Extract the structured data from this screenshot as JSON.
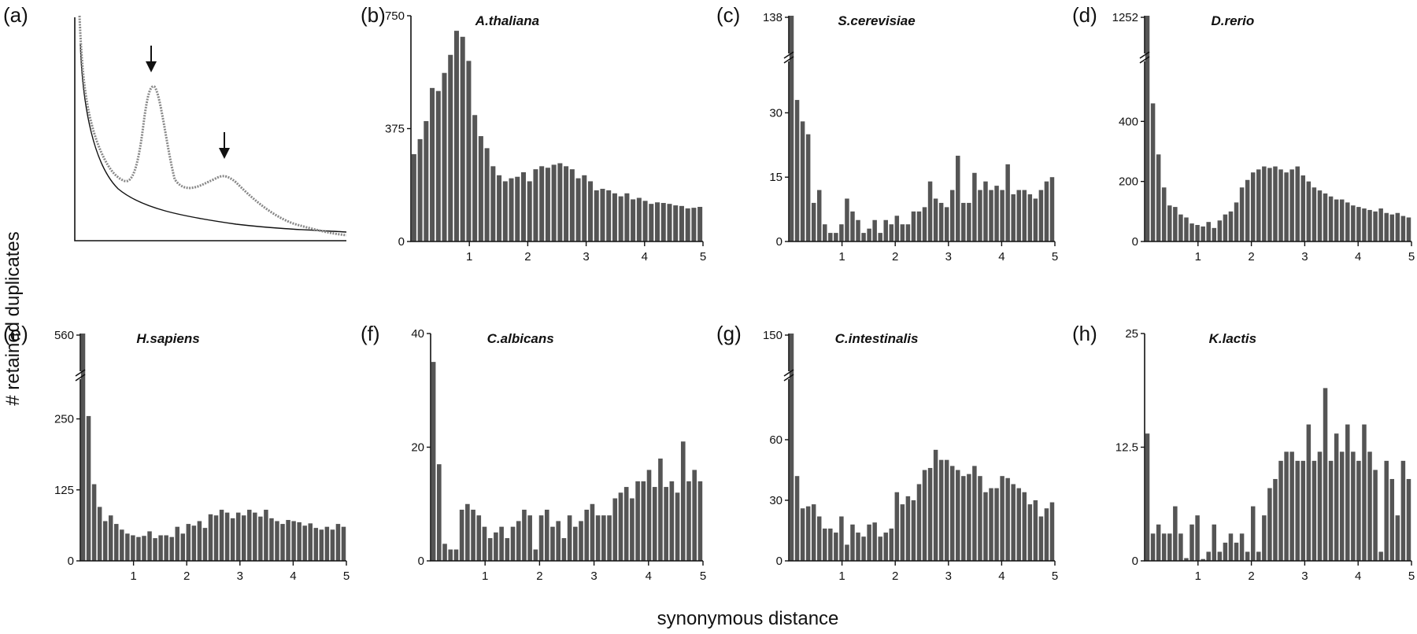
{
  "figure": {
    "xlabel": "synonymous distance",
    "ylabel": "# retained duplicates",
    "bar_color": "#555555"
  },
  "schematic": {
    "letter": "(a)",
    "description_series": [
      "background decay curve (solid)",
      "observed distribution with two peaks (dotted)"
    ],
    "arrows": 2
  },
  "chart_data": [
    {
      "panel": "b",
      "letter": "(b)",
      "type": "bar",
      "title": "A.thaliana",
      "xlabel": "synonymous distance",
      "ylabel": "# retained duplicates",
      "xlim": [
        0,
        5
      ],
      "ylim": [
        0,
        750
      ],
      "yticks": [
        0,
        375,
        750
      ],
      "xticks": [
        1,
        2,
        3,
        4,
        5
      ],
      "broken_axis": false,
      "values": [
        290,
        340,
        400,
        510,
        500,
        560,
        620,
        700,
        680,
        600,
        420,
        350,
        310,
        250,
        220,
        200,
        210,
        215,
        230,
        200,
        240,
        250,
        245,
        255,
        260,
        250,
        240,
        210,
        220,
        200,
        170,
        175,
        170,
        160,
        150,
        160,
        140,
        145,
        135,
        125,
        130,
        128,
        125,
        120,
        118,
        110,
        112,
        115
      ]
    },
    {
      "panel": "c",
      "letter": "(c)",
      "type": "bar",
      "title": "S.cerevisiae",
      "xlabel": "synonymous distance",
      "ylabel": "# retained duplicates",
      "xlim": [
        0,
        5
      ],
      "ylim": [
        0,
        138
      ],
      "yticks": [
        0,
        15,
        30,
        138
      ],
      "xticks": [
        1,
        2,
        3,
        4,
        5
      ],
      "broken_axis": true,
      "break_below": 42,
      "values": [
        138,
        33,
        28,
        25,
        9,
        12,
        4,
        2,
        2,
        4,
        10,
        7,
        5,
        2,
        3,
        5,
        2,
        5,
        4,
        6,
        4,
        4,
        7,
        7,
        8,
        14,
        10,
        9,
        8,
        12,
        20,
        9,
        9,
        16,
        12,
        14,
        12,
        13,
        12,
        18,
        11,
        12,
        12,
        11,
        10,
        12,
        14,
        15
      ]
    },
    {
      "panel": "d",
      "letter": "(d)",
      "type": "bar",
      "title": "D.rerio",
      "xlabel": "synonymous distance",
      "ylabel": "# retained duplicates",
      "xlim": [
        0,
        5
      ],
      "ylim": [
        0,
        1252
      ],
      "yticks": [
        0,
        200,
        400,
        1252
      ],
      "xticks": [
        1,
        2,
        3,
        4,
        5
      ],
      "broken_axis": true,
      "break_below": 600,
      "values": [
        1252,
        460,
        290,
        180,
        120,
        115,
        90,
        80,
        60,
        55,
        50,
        65,
        45,
        70,
        90,
        100,
        130,
        180,
        205,
        230,
        240,
        250,
        245,
        250,
        240,
        230,
        240,
        250,
        220,
        200,
        180,
        170,
        160,
        150,
        140,
        140,
        130,
        120,
        115,
        110,
        105,
        100,
        110,
        95,
        90,
        95,
        85,
        80
      ]
    },
    {
      "panel": "e",
      "letter": "(e)",
      "type": "bar",
      "title": "H.sapiens",
      "xlabel": "synonymous distance",
      "ylabel": "# retained duplicates",
      "xlim": [
        0,
        5
      ],
      "ylim": [
        0,
        560
      ],
      "yticks": [
        0,
        125,
        250,
        560
      ],
      "xticks": [
        1,
        2,
        3,
        4,
        5
      ],
      "broken_axis": true,
      "break_below": 320,
      "values": [
        560,
        255,
        135,
        95,
        70,
        80,
        65,
        55,
        48,
        45,
        42,
        44,
        52,
        40,
        45,
        45,
        42,
        60,
        48,
        65,
        62,
        70,
        58,
        82,
        80,
        90,
        85,
        75,
        85,
        80,
        90,
        85,
        78,
        90,
        75,
        70,
        65,
        72,
        70,
        68,
        62,
        66,
        58,
        55,
        60,
        55,
        65,
        60
      ]
    },
    {
      "panel": "f",
      "letter": "(f)",
      "type": "bar",
      "title": "C.albicans",
      "xlabel": "synonymous distance",
      "ylabel": "# retained duplicates",
      "xlim": [
        0,
        5
      ],
      "ylim": [
        0,
        40
      ],
      "yticks": [
        0,
        20,
        40
      ],
      "xticks": [
        1,
        2,
        3,
        4,
        5
      ],
      "broken_axis": false,
      "values": [
        35,
        17,
        3,
        2,
        2,
        9,
        10,
        9,
        8,
        6,
        4,
        5,
        6,
        4,
        6,
        7,
        9,
        8,
        2,
        8,
        9,
        6,
        7,
        4,
        8,
        6,
        7,
        9,
        10,
        8,
        8,
        8,
        11,
        12,
        13,
        11,
        14,
        14,
        16,
        13,
        18,
        13,
        14,
        12,
        21,
        14,
        16,
        14
      ]
    },
    {
      "panel": "g",
      "letter": "(g)",
      "type": "bar",
      "title": "C.intestinalis",
      "xlabel": "synonymous distance",
      "ylabel": "# retained duplicates",
      "xlim": [
        0,
        5
      ],
      "ylim": [
        0,
        150
      ],
      "yticks": [
        0,
        30,
        60,
        150
      ],
      "xticks": [
        1,
        2,
        3,
        4,
        5
      ],
      "broken_axis": true,
      "break_below": 90,
      "values": [
        150,
        42,
        26,
        27,
        28,
        22,
        16,
        16,
        14,
        22,
        8,
        18,
        14,
        12,
        18,
        19,
        12,
        14,
        16,
        34,
        28,
        32,
        30,
        38,
        45,
        46,
        55,
        50,
        50,
        47,
        45,
        42,
        43,
        47,
        42,
        34,
        36,
        36,
        42,
        41,
        38,
        36,
        34,
        28,
        30,
        22,
        26,
        29
      ]
    },
    {
      "panel": "h",
      "letter": "(h)",
      "type": "bar",
      "title": "K.lactis",
      "xlabel": "synonymous distance",
      "ylabel": "# retained duplicates",
      "xlim": [
        0,
        5
      ],
      "ylim": [
        0,
        25
      ],
      "yticks": [
        0,
        12.5,
        25
      ],
      "xticks": [
        1,
        2,
        3,
        4,
        5
      ],
      "broken_axis": false,
      "values": [
        14,
        3,
        4,
        3,
        3,
        6,
        3,
        0.3,
        4,
        5,
        0.2,
        1,
        4,
        1,
        2,
        3,
        2,
        3,
        1,
        6,
        1,
        5,
        8,
        9,
        11,
        12,
        12,
        11,
        11,
        15,
        11,
        12,
        19,
        11,
        14,
        12,
        15,
        12,
        11,
        15,
        12,
        10,
        1,
        11,
        9,
        5,
        11,
        9
      ]
    }
  ]
}
